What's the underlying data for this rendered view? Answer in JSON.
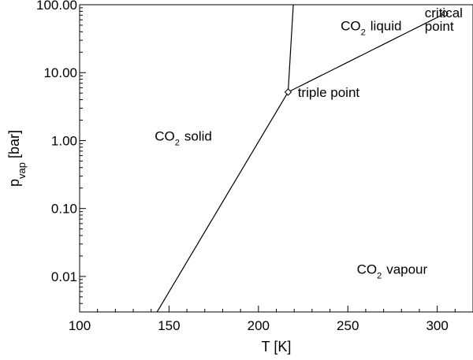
{
  "chart_data": {
    "type": "line",
    "title": "",
    "xlabel": "T [K]",
    "ylabel": {
      "base": "p",
      "subscript": "vap",
      "suffix": "[bar]"
    },
    "xlim": [
      100,
      320
    ],
    "ylim": [
      0.003,
      100
    ],
    "yscale": "log",
    "grid": false,
    "legend": "none",
    "x_ticks": [
      {
        "value": 100,
        "label": "100"
      },
      {
        "value": 150,
        "label": "150"
      },
      {
        "value": 200,
        "label": "200"
      },
      {
        "value": 250,
        "label": "250"
      },
      {
        "value": 300,
        "label": "300"
      }
    ],
    "y_ticks": [
      {
        "value": 0.01,
        "label": "0.01"
      },
      {
        "value": 0.1,
        "label": "0.10"
      },
      {
        "value": 1,
        "label": "1.00"
      },
      {
        "value": 10,
        "label": "10.00"
      },
      {
        "value": 100,
        "label": "100.00"
      }
    ],
    "series": [
      {
        "id": "sublimation",
        "x": [
          143.3,
          150,
          160,
          170,
          180,
          190,
          200,
          210,
          216.6
        ],
        "y": [
          0.003,
          0.0065,
          0.019,
          0.053,
          0.133,
          0.31,
          0.677,
          1.37,
          5.18
        ],
        "curve": "exponential",
        "curve_params": {
          "x_start": 143.3,
          "x_end": 216.6,
          "y_start": 0.003,
          "y_end": 5.18
        }
      },
      {
        "id": "vaporization",
        "x": [
          216.6,
          230,
          250,
          270,
          290,
          304.2
        ],
        "y": [
          5.18,
          8.9,
          17.9,
          32.0,
          53.0,
          73.8
        ],
        "curve": "exponential",
        "curve_params": {
          "x_start": 216.6,
          "x_end": 304.2,
          "y_start": 5.18,
          "y_end": 73.8
        }
      },
      {
        "id": "melting",
        "x": [
          216.6,
          219.5
        ],
        "y": [
          5.18,
          100
        ]
      }
    ],
    "markers": [
      {
        "id": "triple-point",
        "x": 216.6,
        "y": 5.18
      },
      {
        "id": "critical-point",
        "x": 304.2,
        "y": 73.8
      }
    ],
    "annotations": [
      {
        "id": "co2-liquid",
        "x": 246,
        "y": 42,
        "parts": [
          "CO",
          "2",
          "liquid"
        ]
      },
      {
        "id": "co2-solid",
        "x": 142,
        "y": 1.0,
        "parts": [
          "CO",
          "2",
          "solid"
        ]
      },
      {
        "id": "co2-vapour",
        "x": 255,
        "y": 0.011,
        "parts": [
          "CO",
          "2",
          "vapour"
        ]
      },
      {
        "id": "triple-point",
        "x": 222,
        "y": 4.4,
        "lines": [
          "triple point"
        ]
      },
      {
        "id": "critical-point",
        "x": 293,
        "y": 65,
        "lines": [
          "critical",
          "point"
        ]
      }
    ]
  }
}
